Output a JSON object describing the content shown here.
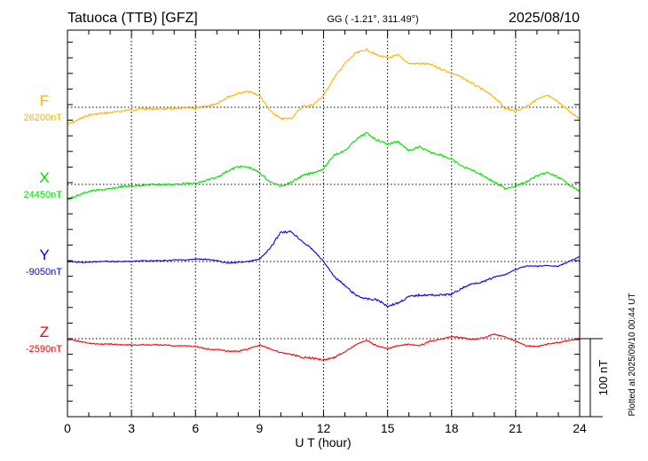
{
  "chart_data": {
    "type": "line",
    "title": "Tatuoca (TTB)  [GFZ]",
    "subtitle": "GG ( -1.21°, 311.49°)",
    "date": "2025/08/10",
    "xlabel": "U T (hour)",
    "xlim": [
      0,
      24
    ],
    "xticks": [
      "0",
      "3",
      "6",
      "9",
      "12",
      "15",
      "18",
      "21",
      "24"
    ],
    "scale_bar": "100 nT",
    "footer": "Plotted at 2025/09/10 00:44 UT",
    "grid": true,
    "x": [
      0,
      0.5,
      1,
      1.5,
      2,
      2.5,
      3,
      3.5,
      4,
      4.5,
      5,
      5.5,
      6,
      6.5,
      7,
      7.5,
      8,
      8.5,
      9,
      9.5,
      10,
      10.5,
      11,
      11.5,
      12,
      12.5,
      13,
      13.5,
      14,
      14.5,
      15,
      15.5,
      16,
      16.5,
      17,
      17.5,
      18,
      18.5,
      19,
      19.5,
      20,
      20.5,
      21,
      21.5,
      22,
      22.5,
      23,
      23.5,
      24
    ],
    "series": [
      {
        "name": "F",
        "baseline_label": "26200nT",
        "baseline": 26200,
        "color": "#ffb000",
        "offsets": [
          -22,
          -16,
          -10,
          -8,
          -7,
          -5,
          -3,
          -2,
          -2,
          -2,
          -2,
          -1,
          -1,
          1,
          5,
          13,
          18,
          20,
          15,
          -5,
          -15,
          -14,
          1,
          3,
          15,
          38,
          56,
          69,
          74,
          67,
          63,
          67,
          56,
          56,
          55,
          49,
          44,
          38,
          30,
          22,
          13,
          -1,
          -5,
          1,
          10,
          15,
          7,
          -5,
          -14
        ]
      },
      {
        "name": "X",
        "baseline_label": "24450nT",
        "baseline": 24450,
        "color": "#00e000",
        "offsets": [
          -19,
          -14,
          -9,
          -7,
          -6,
          -3,
          -2,
          -1,
          0,
          0,
          0,
          1,
          1,
          5,
          9,
          17,
          23,
          22,
          15,
          3,
          -2,
          3,
          11,
          15,
          20,
          38,
          43,
          57,
          66,
          57,
          52,
          55,
          43,
          48,
          41,
          38,
          32,
          23,
          18,
          11,
          3,
          -5,
          -2,
          3,
          11,
          15,
          9,
          0,
          -9
        ]
      },
      {
        "name": "Y",
        "baseline_label": "-9050nT",
        "baseline": -9050,
        "color": "#0000ff",
        "offsets": [
          0,
          -1,
          -1,
          0,
          0,
          0,
          0,
          1,
          1,
          1,
          2,
          2,
          3,
          3,
          1,
          -2,
          -1,
          0,
          3,
          17,
          38,
          38,
          26,
          15,
          0,
          -19,
          -31,
          -43,
          -48,
          -49,
          -57,
          -53,
          -45,
          -43,
          -43,
          -43,
          -42,
          -34,
          -28,
          -26,
          -20,
          -17,
          -10,
          -6,
          -6,
          -5,
          -6,
          0,
          6
        ]
      },
      {
        "name": "Z",
        "baseline_label": "-2590nT",
        "baseline": -2590,
        "color": "#ff0000",
        "offsets": [
          -1,
          -3,
          -6,
          -7,
          -7,
          -8,
          -8,
          -8,
          -8,
          -8,
          -9,
          -9,
          -10,
          -13,
          -14,
          -16,
          -16,
          -13,
          -8,
          -13,
          -18,
          -20,
          -24,
          -25,
          -27,
          -24,
          -17,
          -8,
          -2,
          -9,
          -13,
          -9,
          -7,
          -9,
          -3,
          -1,
          3,
          1,
          -1,
          1,
          6,
          2,
          -3,
          -9,
          -10,
          -7,
          -5,
          -2,
          -1
        ]
      }
    ]
  }
}
